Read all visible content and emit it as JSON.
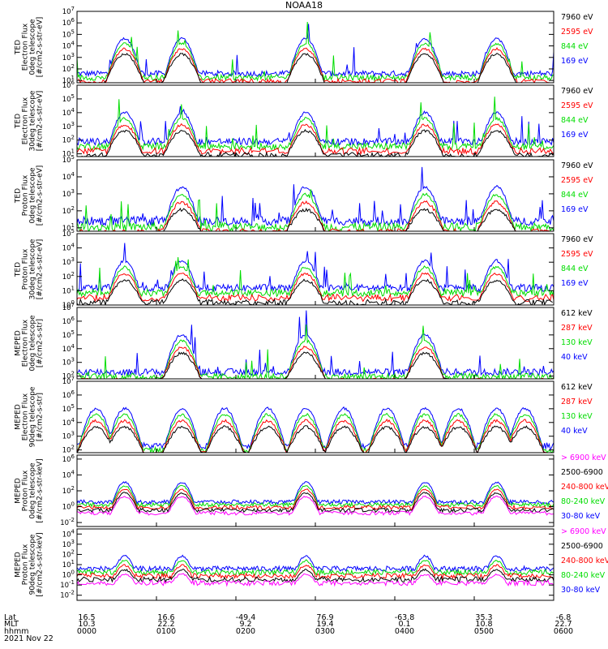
{
  "title": "NOAA18",
  "date": "2021 Nov 22",
  "x_info_labels": [
    "Lat",
    "MLT",
    "hhmm"
  ],
  "x_ticks": [
    {
      "lat": "16.5",
      "mlt": "10.3",
      "time": "0000"
    },
    {
      "lat": "16.6",
      "mlt": "22.2",
      "time": "0100"
    },
    {
      "lat": "-49.4",
      "mlt": "9.2",
      "time": "0200"
    },
    {
      "lat": "76.9",
      "mlt": "19.4",
      "time": "0300"
    },
    {
      "lat": "-63.8",
      "mlt": "0.1",
      "time": "0400"
    },
    {
      "lat": "35.3",
      "mlt": "10.8",
      "time": "0500"
    },
    {
      "lat": "-6.8",
      "mlt": "22.7",
      "time": "0600"
    }
  ],
  "colors": {
    "c1": "#0000ff",
    "c2": "#00dd00",
    "c3": "#ff0000",
    "c4": "#000000",
    "c5": "#ff00ff"
  },
  "chart_data": [
    {
      "type": "line",
      "ylabel_lines": [
        "TED",
        "Electron Flux",
        "0deg telescope",
        "[#/cm2-s-str-eV]"
      ],
      "yticks": [
        "10^1",
        "10^2",
        "10^3",
        "10^4",
        "10^5",
        "10^6",
        "10^7"
      ],
      "ylog": [
        0.8,
        7
      ],
      "legend": [
        {
          "name": "7960 eV",
          "color": "#000000"
        },
        {
          "name": "2595 eV",
          "color": "#ff0000"
        },
        {
          "name": "844 eV",
          "color": "#00dd00"
        },
        {
          "name": "169 eV",
          "color": "#0000ff"
        }
      ],
      "passes": [
        10,
        22,
        48,
        73,
        88
      ],
      "bg": 1.6,
      "spikes": true
    },
    {
      "type": "line",
      "ylabel_lines": [
        "TED",
        "Electron Flux",
        "30deg telescope",
        "[#/cm2-s-str-eV]"
      ],
      "yticks": [
        "10^1",
        "10^2",
        "10^3",
        "10^4",
        "10^5",
        "10^6"
      ],
      "ylog": [
        0.8,
        6
      ],
      "legend": [
        {
          "name": "7960 eV",
          "color": "#000000"
        },
        {
          "name": "2595 eV",
          "color": "#ff0000"
        },
        {
          "name": "844 eV",
          "color": "#00dd00"
        },
        {
          "name": "169 eV",
          "color": "#0000ff"
        }
      ],
      "passes": [
        10,
        22,
        48,
        73,
        88
      ],
      "bg": 1.9,
      "spikes": true
    },
    {
      "type": "line",
      "ylabel_lines": [
        "TED",
        "Proton Flux",
        "0deg telescope",
        "[#/cm2-s-str-eV]"
      ],
      "yticks": [
        "10^1",
        "10^2",
        "10^3",
        "10^4",
        "10^5"
      ],
      "ylog": [
        0.8,
        5
      ],
      "legend": [
        {
          "name": "7960 eV",
          "color": "#000000"
        },
        {
          "name": "2595 eV",
          "color": "#ff0000"
        },
        {
          "name": "844 eV",
          "color": "#00dd00"
        },
        {
          "name": "169 eV",
          "color": "#0000ff"
        }
      ],
      "passes": [
        22,
        48,
        73,
        88
      ],
      "bg": 1.4,
      "spikes": true
    },
    {
      "type": "line",
      "ylabel_lines": [
        "TED",
        "Proton Flux",
        "30deg telescope",
        "[#/cm2-s-str-eV]"
      ],
      "yticks": [
        "10^0",
        "10^1",
        "10^2",
        "10^3",
        "10^4",
        "10^5"
      ],
      "ylog": [
        0,
        5
      ],
      "legend": [
        {
          "name": "7960 eV",
          "color": "#000000"
        },
        {
          "name": "2595 eV",
          "color": "#ff0000"
        },
        {
          "name": "844 eV",
          "color": "#00dd00"
        },
        {
          "name": "169 eV",
          "color": "#0000ff"
        }
      ],
      "passes": [
        10,
        22,
        48,
        73,
        88
      ],
      "bg": 1.2,
      "spikes": true
    },
    {
      "type": "line",
      "ylabel_lines": [
        "MEPED",
        "Electron Flux",
        "0deg telescope",
        "[#/cm2-s-str]"
      ],
      "yticks": [
        "10^2",
        "10^3",
        "10^4",
        "10^5",
        "10^6",
        "10^7"
      ],
      "ylog": [
        1.8,
        7
      ],
      "legend": [
        {
          "name": "612 keV",
          "color": "#000000"
        },
        {
          "name": "287 keV",
          "color": "#ff0000"
        },
        {
          "name": "130 keV",
          "color": "#00dd00"
        },
        {
          "name": "40 keV",
          "color": "#0000ff"
        }
      ],
      "passes": [
        22,
        48,
        73
      ],
      "bg": 2.3,
      "spikes": true
    },
    {
      "type": "line",
      "ylabel_lines": [
        "MEPED",
        "Electron Flux",
        "90deg telescope",
        "[#/cm2-s-str]"
      ],
      "yticks": [
        "10^2",
        "10^3",
        "10^4",
        "10^5",
        "10^6",
        "10^7"
      ],
      "ylog": [
        1.8,
        7
      ],
      "legend": [
        {
          "name": "612 keV",
          "color": "#000000"
        },
        {
          "name": "287 keV",
          "color": "#ff0000"
        },
        {
          "name": "130 keV",
          "color": "#00dd00"
        },
        {
          "name": "40 keV",
          "color": "#0000ff"
        }
      ],
      "passes": [
        4,
        10,
        22,
        31,
        40,
        48,
        56,
        65,
        73,
        80,
        88,
        94
      ],
      "bg": 2.3,
      "spikes": false
    },
    {
      "type": "line",
      "ylabel_lines": [
        "MEPED",
        "Proton Flux",
        "0deg telescope",
        "[#/cm2-s-str-keV]"
      ],
      "yticks": [
        "10^-2",
        "10^0",
        "10^2",
        "10^4",
        "10^6"
      ],
      "ylog": [
        -2.5,
        6.5
      ],
      "legend": [
        {
          "name": "> 6900 keV",
          "color": "#ff00ff"
        },
        {
          "name": "2500-6900",
          "color": "#000000"
        },
        {
          "name": "240-800 keV",
          "color": "#ff0000"
        },
        {
          "name": "80-240 keV",
          "color": "#00dd00"
        },
        {
          "name": "30-80 keV",
          "color": "#0000ff"
        }
      ],
      "passes": [
        10,
        22,
        48,
        73,
        88
      ],
      "bg": 0.6,
      "spikes": false
    },
    {
      "type": "line",
      "ylabel_lines": [
        "MEPED",
        "Proton Flux",
        "90deg telescope",
        "[#/cm2-s-str-keV]"
      ],
      "yticks": [
        "10^-2",
        "10^-1",
        "10^0",
        "10^1",
        "10^2",
        "10^3",
        "10^4"
      ],
      "ylog": [
        -2.5,
        4.5
      ],
      "legend": [
        {
          "name": "> 6900 keV",
          "color": "#ff00ff"
        },
        {
          "name": "2500-6900",
          "color": "#000000"
        },
        {
          "name": "240-800 keV",
          "color": "#ff0000"
        },
        {
          "name": "80-240 keV",
          "color": "#00dd00"
        },
        {
          "name": "30-80 keV",
          "color": "#0000ff"
        }
      ],
      "passes": [
        10,
        22,
        48,
        73,
        88
      ],
      "bg": 0.6,
      "spikes": false
    }
  ]
}
